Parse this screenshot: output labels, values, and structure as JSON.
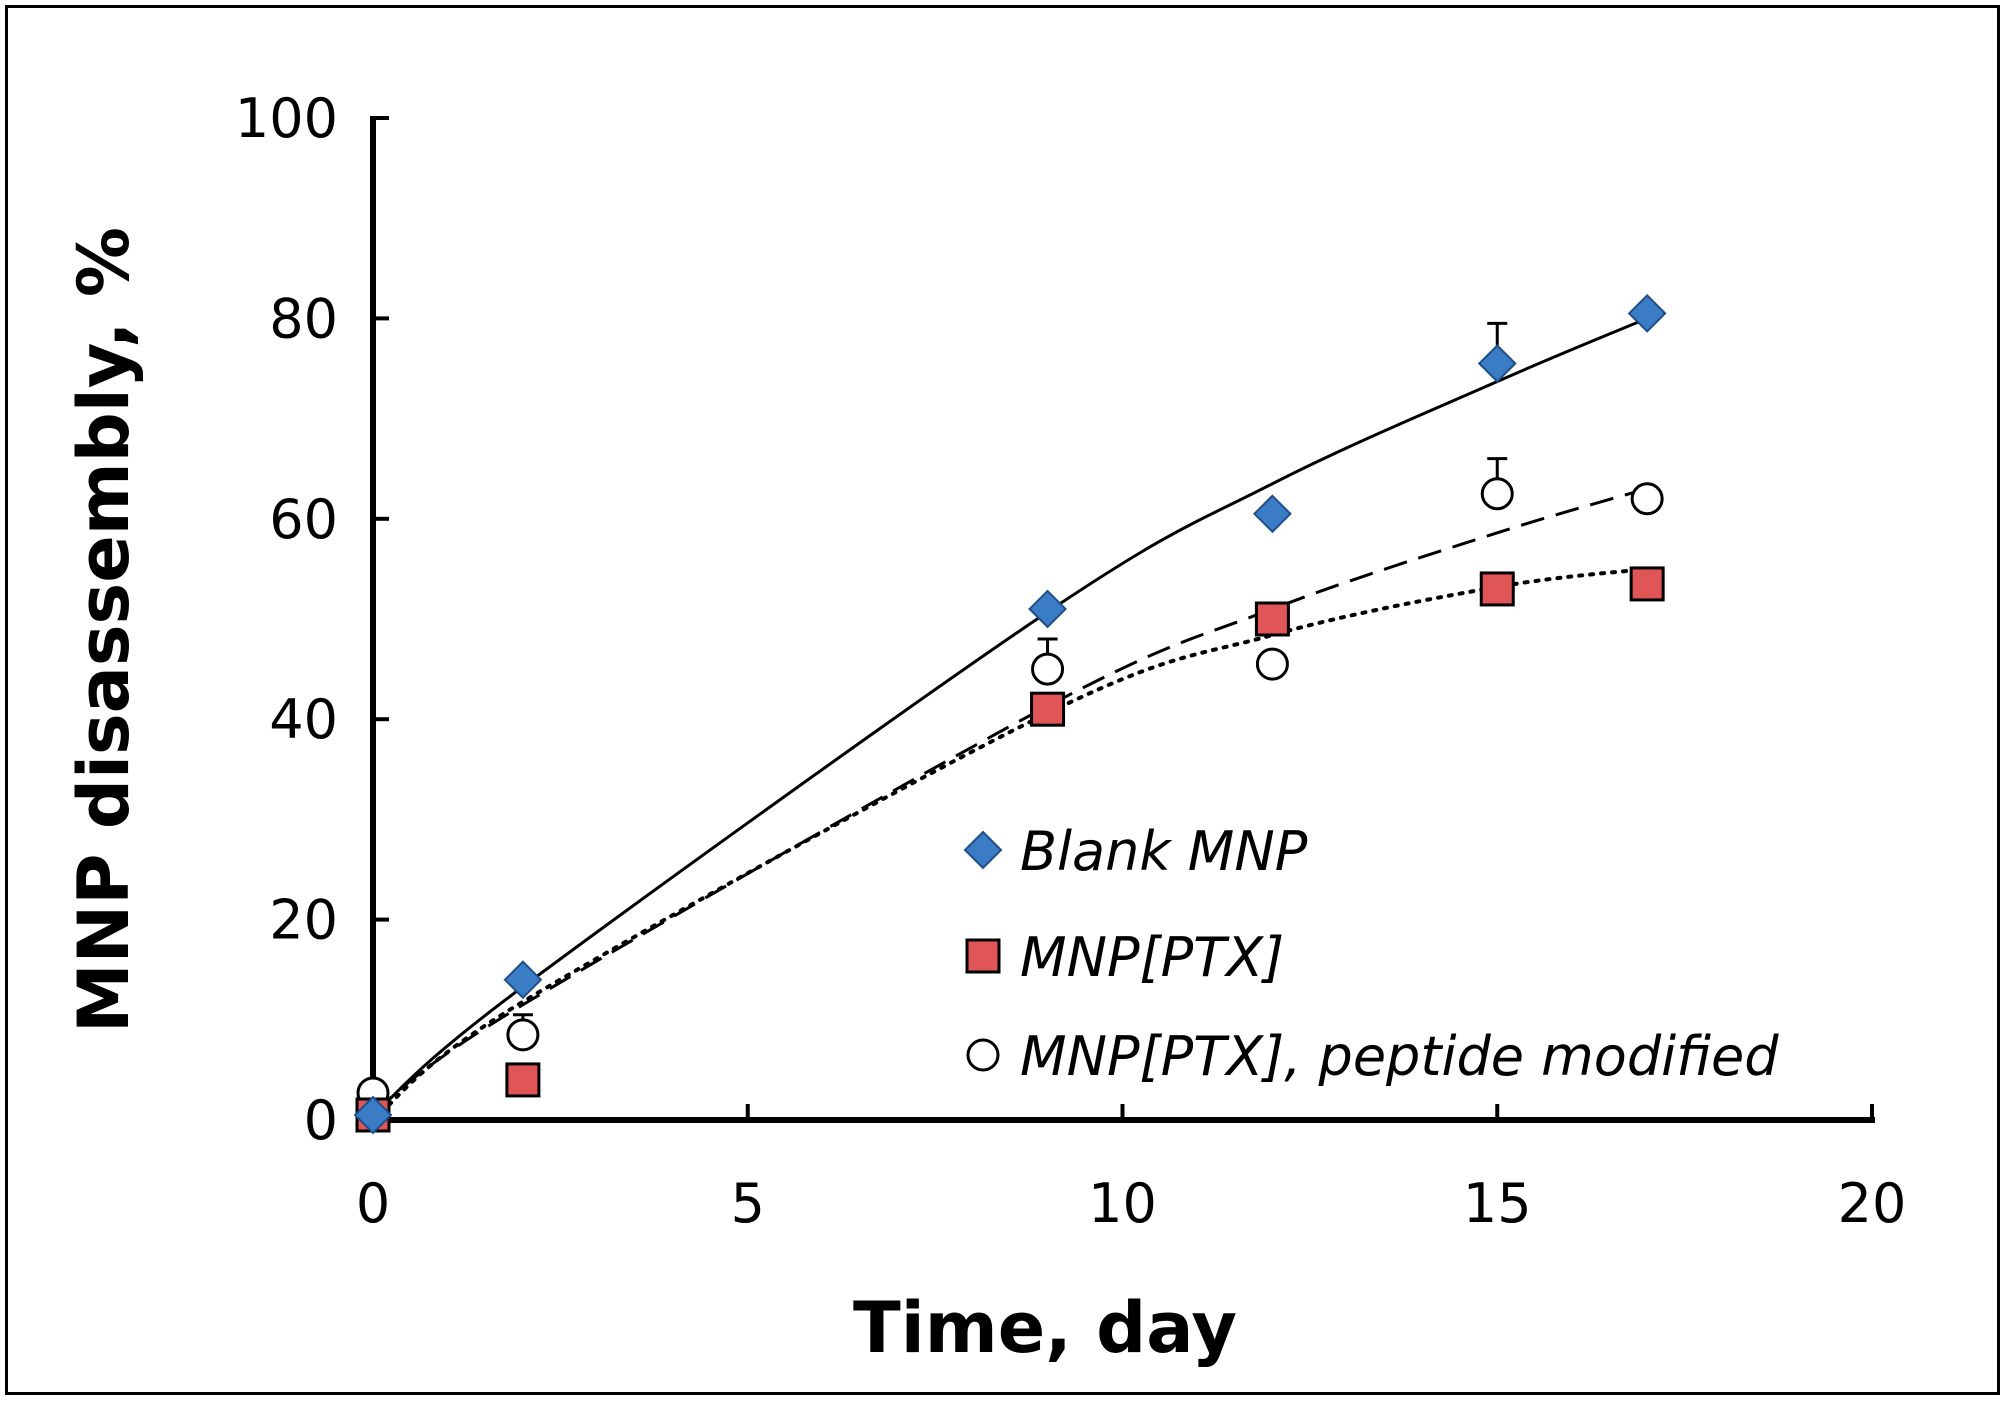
{
  "chart_data": {
    "type": "scatter",
    "xlabel": "Time, day",
    "ylabel": "MNP disassembly, %",
    "xlim": [
      0,
      20
    ],
    "ylim": [
      0,
      100
    ],
    "x_ticks": [
      "0",
      "5",
      "10",
      "15",
      "20"
    ],
    "y_ticks": [
      "0",
      "20",
      "40",
      "60",
      "80",
      "100"
    ],
    "grid": false,
    "legend_position": "bottom-right",
    "series": [
      {
        "name": "Blank MNP",
        "marker": "diamond",
        "color": "#3b7dc4",
        "line": "solid",
        "x": [
          0,
          2,
          9,
          12,
          15,
          17
        ],
        "y": [
          0.5,
          14,
          51,
          60.5,
          75.5,
          80.5
        ],
        "error_up": [
          0,
          0,
          0,
          0,
          4,
          0
        ],
        "fit_y": [
          0.5,
          13.3,
          50.7,
          63.5,
          73.7,
          80
        ]
      },
      {
        "name": "MNP[PTX]",
        "marker": "square",
        "color": "#e05555",
        "line": "dotted",
        "x": [
          0,
          2,
          9,
          12,
          15,
          17
        ],
        "y": [
          0.5,
          4,
          41,
          50,
          53,
          53.5
        ],
        "error_up": [
          0,
          0,
          0,
          0,
          0,
          0
        ],
        "fit_y": [
          0,
          11.8,
          40.6,
          48.4,
          53.2,
          55
        ]
      },
      {
        "name": "MNP[PTX], peptide modified",
        "marker": "circle",
        "color": "#ffffff",
        "line": "dashed",
        "x": [
          0,
          2,
          9,
          12,
          15,
          17
        ],
        "y": [
          2.7,
          8.5,
          45,
          45.5,
          62.5,
          62
        ],
        "error_up": [
          0,
          2,
          3,
          0,
          3.5,
          0
        ],
        "fit_y": [
          0.8,
          11.5,
          41.3,
          51,
          58.6,
          63
        ]
      }
    ]
  }
}
